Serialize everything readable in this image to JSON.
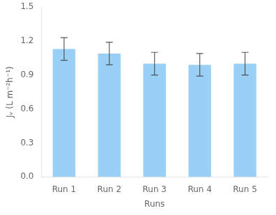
{
  "chart_data": {
    "type": "bar",
    "categories": [
      "Run 1",
      "Run 2",
      "Run 3",
      "Run 4",
      "Run 5"
    ],
    "values": [
      1.13,
      1.09,
      1.0,
      0.99,
      1.0
    ],
    "errors": [
      0.1,
      0.1,
      0.1,
      0.1,
      0.1
    ],
    "xlabel": "Runs",
    "ylabel": "Jᵥ (L m⁻²h⁻¹)",
    "ylim": [
      0.0,
      1.5
    ],
    "yticks": [
      {
        "value": 0.0,
        "label": "0.0"
      },
      0.3,
      0.6,
      0.9,
      1.2,
      1.5
    ],
    "grid": false
  }
}
